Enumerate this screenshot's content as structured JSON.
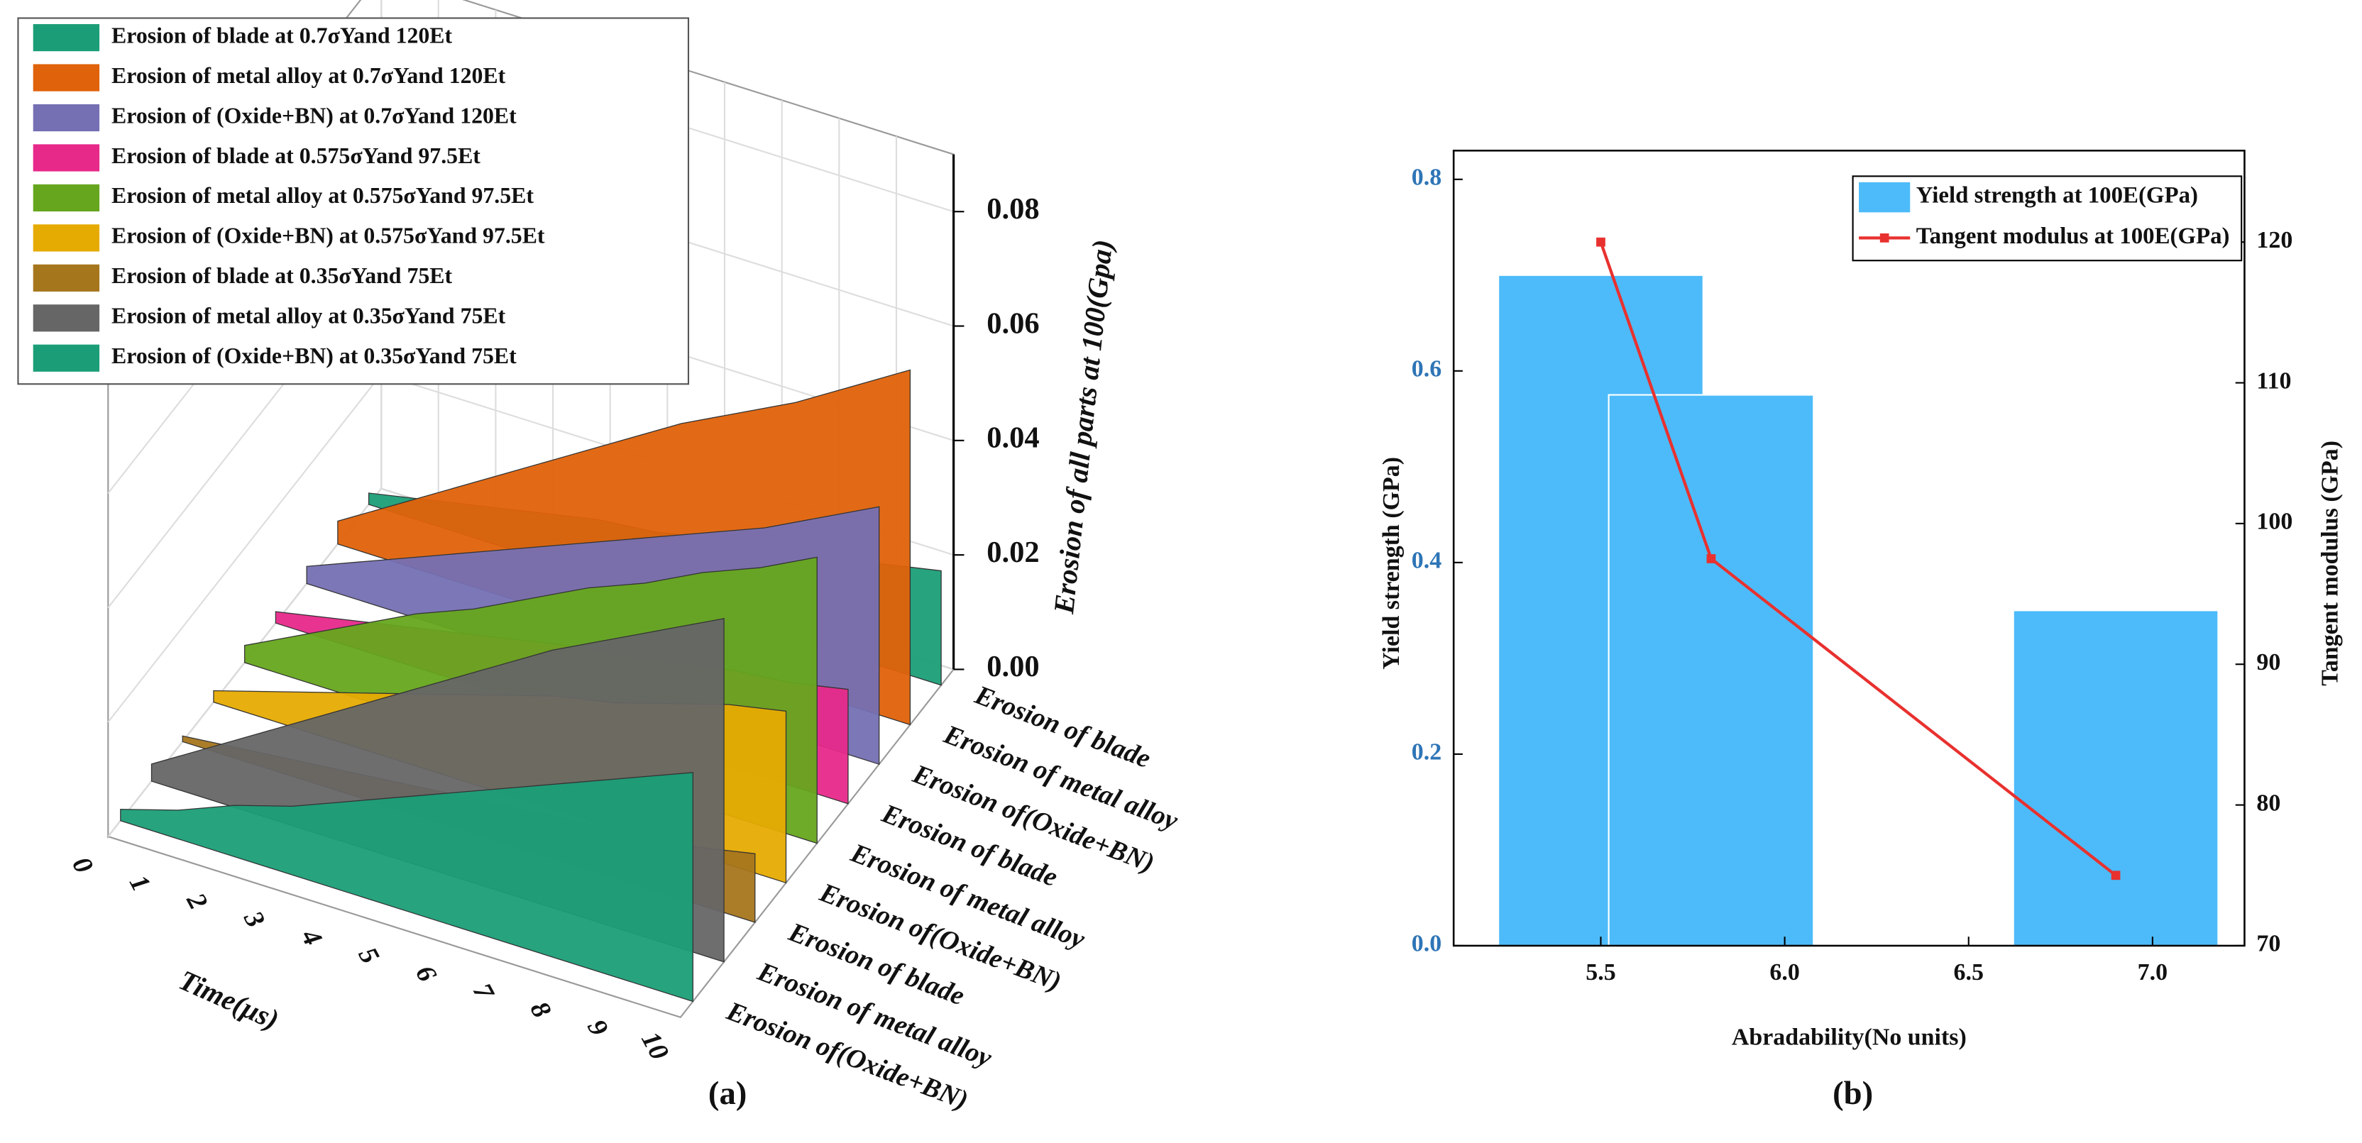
{
  "chart_data": [
    {
      "type": "area3d",
      "caption": "(a)",
      "xlabel": "Time(μs)",
      "zlabel": "Erosion of all parts at 100(Gpa)",
      "x": [
        0,
        1,
        2,
        3,
        4,
        5,
        6,
        7,
        8,
        9,
        10
      ],
      "xlim": [
        0,
        10
      ],
      "xticks": [
        0,
        1,
        2,
        3,
        4,
        5,
        6,
        7,
        8,
        9,
        10
      ],
      "zlim": [
        0,
        0.09
      ],
      "zticks": [
        {
          "value": 0,
          "label": "0.00"
        },
        {
          "value": 0.02,
          "label": "0.02"
        },
        {
          "value": 0.04,
          "label": "0.04"
        },
        {
          "value": 0.06,
          "label": "0.06"
        },
        {
          "value": 0.08,
          "label": "0.08"
        }
      ],
      "categories": [
        "Erosion of blade",
        "Erosion of metal alloy",
        "Erosion of(Oxide+BN)",
        "Erosion of blade",
        "Erosion of metal alloy",
        "Erosion of(Oxide+BN)",
        "Erosion of blade",
        "Erosion of metal alloy",
        "Erosion of(Oxide+BN)"
      ],
      "grid": true,
      "legend": "upper left",
      "series": [
        {
          "name": "Erosion of blade at 0.7σYand 120Et",
          "color": "#1b9e77",
          "values": [
            0.002,
            0.004,
            0.006,
            0.008,
            0.01,
            0.011,
            0.013,
            0.015,
            0.016,
            0.018,
            0.02
          ]
        },
        {
          "name": "Erosion of metal alloy at 0.7σYand 120Et",
          "color": "#e0620a",
          "values": [
            0.004,
            0.01,
            0.016,
            0.022,
            0.028,
            0.034,
            0.04,
            0.045,
            0.05,
            0.056,
            0.062
          ]
        },
        {
          "name": "Erosion of (Oxide+BN) at 0.7σYand 120Et",
          "color": "#7570b3",
          "values": [
            0.003,
            0.007,
            0.011,
            0.015,
            0.019,
            0.023,
            0.027,
            0.031,
            0.035,
            0.04,
            0.045
          ]
        },
        {
          "name": "Erosion of blade at 0.575σYand 97.5Et",
          "color": "#e7298a",
          "values": [
            0.002,
            0.004,
            0.006,
            0.008,
            0.01,
            0.012,
            0.013,
            0.015,
            0.017,
            0.018,
            0.02
          ]
        },
        {
          "name": "Erosion of metal alloy at 0.575σYand 97.5Et",
          "color": "#66a61e",
          "values": [
            0.003,
            0.008,
            0.013,
            0.018,
            0.022,
            0.027,
            0.032,
            0.036,
            0.041,
            0.045,
            0.05
          ]
        },
        {
          "name": "Erosion of (Oxide+BN) at 0.575σYand 97.5Et",
          "color": "#e6ab02",
          "values": [
            0.002,
            0.005,
            0.008,
            0.011,
            0.014,
            0.017,
            0.02,
            0.022,
            0.025,
            0.028,
            0.03
          ]
        },
        {
          "name": "Erosion of blade at 0.35σYand 75Et",
          "color": "#a6761d",
          "values": [
            0.001,
            0.002,
            0.003,
            0.004,
            0.005,
            0.006,
            0.007,
            0.008,
            0.009,
            0.01,
            0.012
          ]
        },
        {
          "name": "Erosion of metal alloy at 0.35σYand 75Et",
          "color": "#666666",
          "values": [
            0.003,
            0.009,
            0.015,
            0.021,
            0.027,
            0.033,
            0.039,
            0.045,
            0.05,
            0.055,
            0.06
          ]
        },
        {
          "name": "Erosion of (Oxide+BN) at 0.35σYand 75Et",
          "color": "#1b9e77",
          "values": [
            0.002,
            0.005,
            0.009,
            0.012,
            0.016,
            0.02,
            0.024,
            0.028,
            0.032,
            0.036,
            0.04
          ]
        }
      ]
    },
    {
      "type": "combo",
      "caption": "(b)",
      "xlabel": "Abradability(No units)",
      "ylabel": "Yield strength (GPa)",
      "y2label": "Tangent modulus (GPa)",
      "x": [
        5.5,
        5.8,
        6.9
      ],
      "xlim": [
        5.1,
        7.25
      ],
      "xticks": [
        5.5,
        {
          "value": 6,
          "label": "6.0"
        },
        6.5,
        {
          "value": 7,
          "label": "7.0"
        }
      ],
      "ylim": [
        0,
        0.83
      ],
      "yticks": [
        {
          "value": 0,
          "label": "0.0"
        },
        0.2,
        0.4,
        0.6,
        0.8
      ],
      "y2lim": [
        70,
        126.5
      ],
      "y2ticks": [
        70,
        80,
        90,
        100,
        110,
        120
      ],
      "legend": "upper right",
      "series": [
        {
          "name": "Yield strength at 100E(GPa)",
          "type": "bar",
          "color": "#4dbbf9",
          "values": [
            0.7,
            0.575,
            0.35
          ]
        },
        {
          "name": "Tangent modulus at 100E(GPa)",
          "type": "line",
          "color": "#e8312f",
          "values": [
            120,
            97.5,
            75
          ],
          "axis": "y2"
        }
      ]
    }
  ]
}
